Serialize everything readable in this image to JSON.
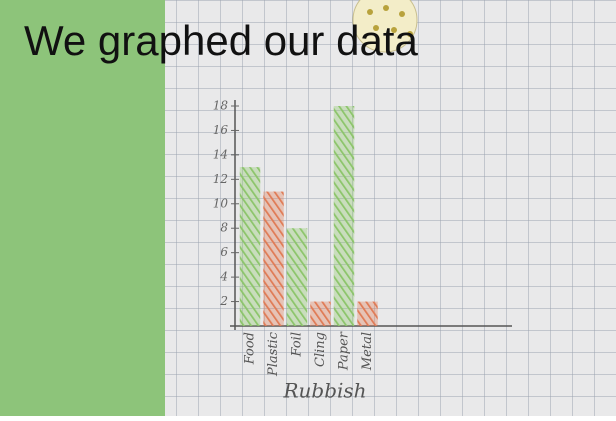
{
  "chart_data": {
    "type": "bar",
    "title": "We graphed our data",
    "x_label": "Rubbish",
    "categories": [
      "Food",
      "Plastic",
      "Foil",
      "Cling",
      "Paper",
      "Metal"
    ],
    "values": [
      13,
      11,
      8,
      2,
      18,
      2
    ],
    "colors": [
      "#8cc56a",
      "#e07b55",
      "#8cc56a",
      "#e07b55",
      "#8cc56a",
      "#e07b55"
    ],
    "ylim": [
      0,
      18
    ],
    "yticks": [
      2,
      4,
      6,
      8,
      10,
      12,
      14,
      16,
      18
    ]
  }
}
